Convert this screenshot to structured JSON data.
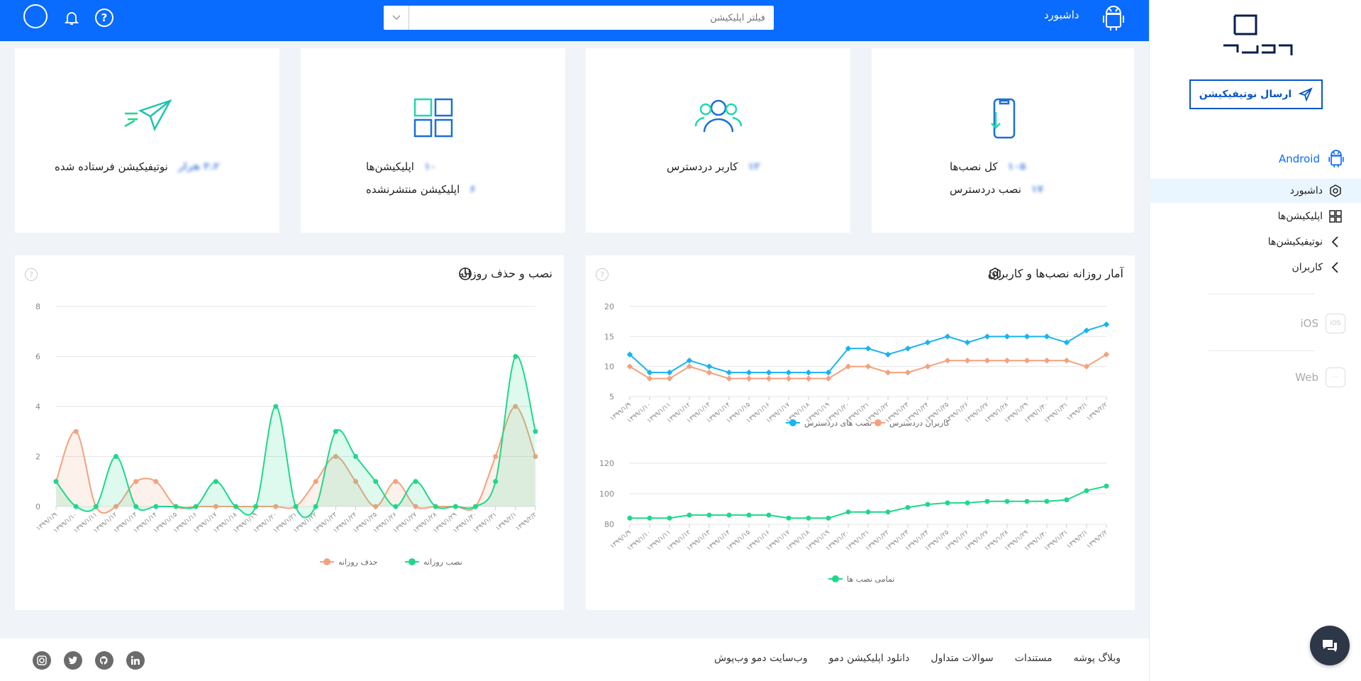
{
  "topbar": {
    "title": "داشبورد",
    "search_placeholder": "فیلتر اپلیکیشن",
    "help_glyph": "?"
  },
  "sidebar": {
    "send_button": "ارسال نوتیفیکیشن",
    "platforms": {
      "android": "Android",
      "ios": "iOS",
      "web": "Web",
      "ios_badge": "iOS",
      "web_badge": "···"
    },
    "nav": [
      "داشبورد",
      "اپلیکیشن‌ها",
      "نوتیفیکیشن‌ها",
      "کاربران"
    ]
  },
  "stats": {
    "notif": {
      "value": "۳.۲ هزار",
      "label": "نوتیفیکیشن فرستاده شده"
    },
    "apps": {
      "value1": "۱۰",
      "label1": "اپلیکیشن‌ها",
      "value2": "۶",
      "label2": "اپلیکیشن منتشرنشده"
    },
    "users": {
      "value": "۱۲",
      "label": "کاربر دردسترس"
    },
    "installs": {
      "value1": "۱۰۵",
      "label1": "کل نصب‌ها",
      "value2": "۱۷",
      "label2": "نصب دردسترس"
    }
  },
  "chart_left_title": "نصب و حذف روزانه",
  "chart_right_title": "آمار روزانه نصب‌ها و کاربران",
  "chart_help": "?",
  "chart_data": [
    {
      "type": "area",
      "title": "نصب و حذف روزانه",
      "x": [
        "۱۳۹۹/۱/۹",
        "۱۳۹۹/۱/۱۰",
        "۱۳۹۹/۱/۱۱",
        "۱۳۹۹/۱/۱۲",
        "۱۳۹۹/۱/۱۳",
        "۱۳۹۹/۱/۱۴",
        "۱۳۹۹/۱/۱۵",
        "۱۳۹۹/۱/۱۶",
        "۱۳۹۹/۱/۱۷",
        "۱۳۹۹/۱/۱۸",
        "۱۳۹۹/۱/۱۹",
        "۱۳۹۹/۱/۲۰",
        "۱۳۹۹/۱/۲۱",
        "۱۳۹۹/۱/۲۲",
        "۱۳۹۹/۱/۲۳",
        "۱۳۹۹/۱/۲۴",
        "۱۳۹۹/۱/۲۵",
        "۱۳۹۹/۱/۲۶",
        "۱۳۹۹/۱/۲۷",
        "۱۳۹۹/۱/۲۸",
        "۱۳۹۹/۱/۲۹",
        "۱۳۹۹/۱/۳۰",
        "۱۳۹۹/۱/۳۱",
        "۱۳۹۹/۲/۱",
        "۱۳۹۹/۲/۲"
      ],
      "series": [
        {
          "name": "حذف روزانه",
          "color": "#f2a27e",
          "values": [
            1,
            3,
            0,
            0,
            1,
            1,
            0,
            0,
            0,
            0,
            0,
            0,
            0,
            1,
            2,
            1,
            0,
            1,
            0,
            0,
            0,
            0,
            2,
            4,
            2
          ]
        },
        {
          "name": "نصب روزانه",
          "color": "#1fd88a",
          "values": [
            1,
            0,
            0,
            2,
            0,
            0,
            0,
            0,
            1,
            0,
            0,
            4,
            0,
            0,
            3,
            2,
            1,
            0,
            1,
            0,
            0,
            0,
            1,
            6,
            3
          ]
        }
      ],
      "ylim": [
        0,
        8
      ],
      "yticks": [
        0,
        2,
        4,
        6,
        8
      ],
      "x_tick_every": 1,
      "legend": "bottom"
    },
    {
      "type": "line",
      "title": "آمار روزانه نصب‌ها و کاربران",
      "x": [
        "۱۳۹۹/۱/۹",
        "۱۳۹۹/۱/۱۰",
        "۱۳۹۹/۱/۱۱",
        "۱۳۹۹/۱/۱۲",
        "۱۳۹۹/۱/۱۳",
        "۱۳۹۹/۱/۱۴",
        "۱۳۹۹/۱/۱۵",
        "۱۳۹۹/۱/۱۶",
        "۱۳۹۹/۱/۱۷",
        "۱۳۹۹/۱/۱۸",
        "۱۳۹۹/۱/۱۹",
        "۱۳۹۹/۱/۲۰",
        "۱۳۹۹/۱/۲۱",
        "۱۳۹۹/۱/۲۲",
        "۱۳۹۹/۱/۲۳",
        "۱۳۹۹/۱/۲۴",
        "۱۳۹۹/۱/۲۵",
        "۱۳۹۹/۱/۲۶",
        "۱۳۹۹/۱/۲۷",
        "۱۳۹۹/۱/۲۸",
        "۱۳۹۹/۱/۲۹",
        "۱۳۹۹/۱/۳۰",
        "۱۳۹۹/۱/۳۱",
        "۱۳۹۹/۲/۱",
        "۱۳۹۹/۲/۲"
      ],
      "series": [
        {
          "name": "نصب های دردسترس",
          "color": "#1ab3f0",
          "values": [
            12,
            9,
            9,
            11,
            10,
            9,
            9,
            9,
            9,
            9,
            9,
            13,
            13,
            12,
            13,
            14,
            15,
            14,
            15,
            15,
            15,
            15,
            14,
            16,
            17
          ]
        },
        {
          "name": "کاربران دردسترس",
          "color": "#f2a27e",
          "values": [
            10,
            8,
            8,
            10,
            9,
            8,
            8,
            8,
            8,
            8,
            8,
            10,
            10,
            9,
            9,
            10,
            11,
            11,
            11,
            11,
            11,
            11,
            11,
            10,
            12
          ]
        }
      ],
      "ylim": [
        5,
        20
      ],
      "yticks": [
        5,
        10,
        15,
        20
      ],
      "legend": "bottom"
    },
    {
      "type": "line",
      "title": "",
      "x": [
        "۱۳۹۹/۱/۹",
        "۱۳۹۹/۱/۱۰",
        "۱۳۹۹/۱/۱۱",
        "۱۳۹۹/۱/۱۲",
        "۱۳۹۹/۱/۱۳",
        "۱۳۹۹/۱/۱۴",
        "۱۳۹۹/۱/۱۵",
        "۱۳۹۹/۱/۱۶",
        "۱۳۹۹/۱/۱۷",
        "۱۳۹۹/۱/۱۸",
        "۱۳۹۹/۱/۱۹",
        "۱۳۹۹/۱/۲۰",
        "۱۳۹۹/۱/۲۱",
        "۱۳۹۹/۱/۲۲",
        "۱۳۹۹/۱/۲۳",
        "۱۳۹۹/۱/۲۴",
        "۱۳۹۹/۱/۲۵",
        "۱۳۹۹/۱/۲۶",
        "۱۳۹۹/۱/۲۷",
        "۱۳۹۹/۱/۲۸",
        "۱۳۹۹/۱/۲۹",
        "۱۳۹۹/۱/۳۰",
        "۱۳۹۹/۱/۳۱",
        "۱۳۹۹/۲/۱",
        "۱۳۹۹/۲/۲"
      ],
      "series": [
        {
          "name": "تمامی نصب ها",
          "color": "#1fd88a",
          "values": [
            84,
            84,
            84,
            86,
            86,
            86,
            86,
            86,
            84,
            84,
            84,
            88,
            88,
            88,
            91,
            93,
            94,
            94,
            95,
            95,
            95,
            95,
            96,
            102,
            105
          ]
        }
      ],
      "ylim": [
        80,
        120
      ],
      "yticks": [
        80,
        100,
        120
      ],
      "legend": "bottom"
    }
  ],
  "footer": {
    "links": [
      "وبلاگ پوشه",
      "مستندات",
      "سوالات متداول",
      "دانلود اپلیکیشن دمو",
      "وب‌سایت دمو وب‌پوش"
    ],
    "social": [
      "in",
      "gh",
      "tw",
      "ig"
    ]
  },
  "colors": {
    "primary": "#0a6bff",
    "green": "#1fd88a",
    "orange": "#f2a27e",
    "cyan": "#1ab3f0"
  }
}
